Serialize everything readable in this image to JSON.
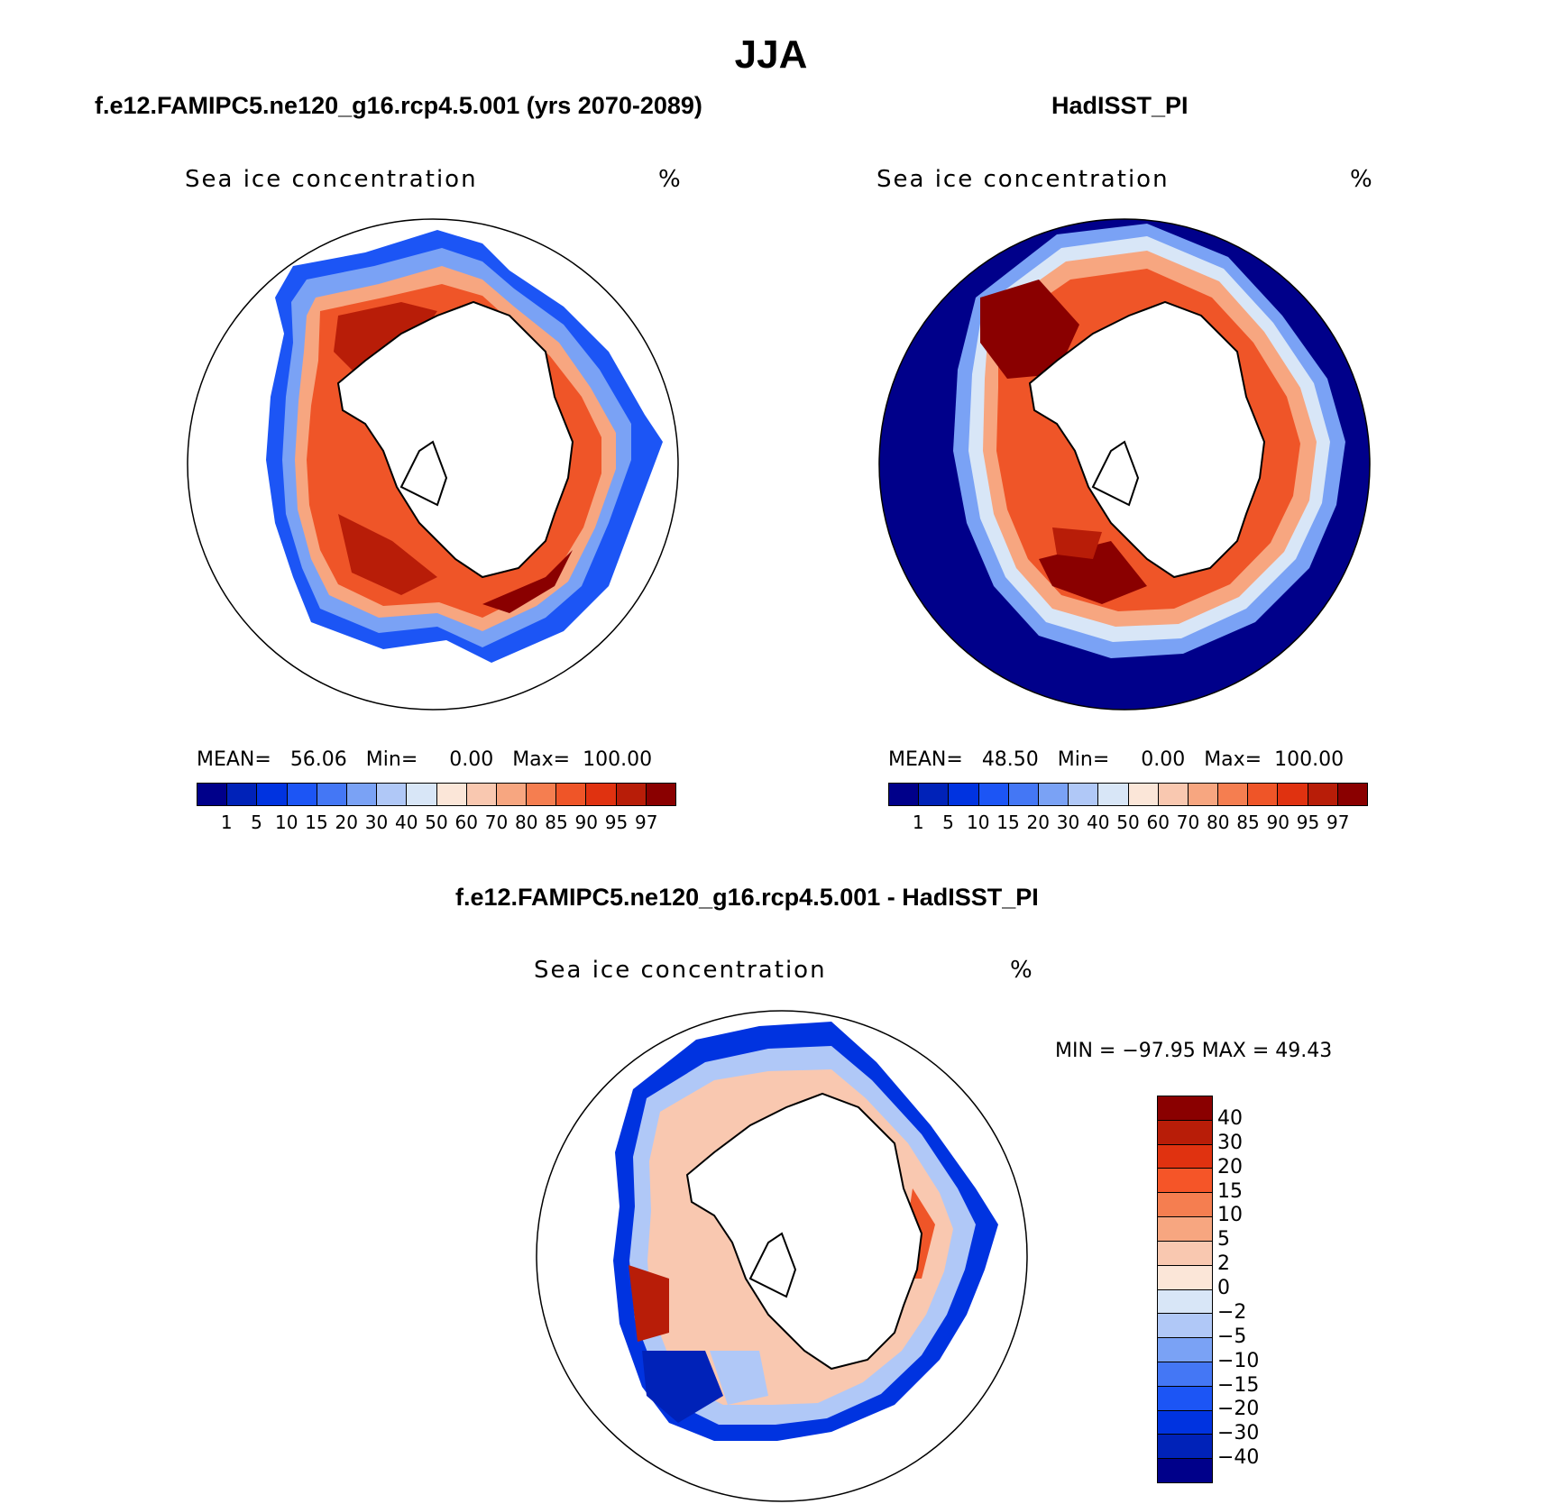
{
  "figure": {
    "title": "JJA"
  },
  "panels": [
    {
      "name": "model",
      "title": "f.e12.FAMIPC5.ne120_g16.rcp4.5.001 (yrs 2070-2089)",
      "field_label": "Sea ice concentration",
      "units": "%",
      "mean_label": "MEAN=",
      "mean": "56.06",
      "min_label": "Min=",
      "min": "0.00",
      "max_label": "Max=",
      "max": "100.00"
    },
    {
      "name": "obs",
      "title": "HadISST_PI",
      "field_label": "Sea ice concentration",
      "units": "%",
      "mean_label": "MEAN=",
      "mean": "48.50",
      "min_label": "Min=",
      "min": "0.00",
      "max_label": "Max=",
      "max": "100.00"
    },
    {
      "name": "diff",
      "title": "f.e12.FAMIPC5.ne120_g16.rcp4.5.001 - HadISST_PI",
      "field_label": "Sea ice concentration",
      "units": "%",
      "minmax_text": "MIN = −97.95 MAX =   49.43"
    }
  ],
  "colorbar_abs": {
    "levels": [
      "1",
      "5",
      "10",
      "15",
      "20",
      "30",
      "40",
      "50",
      "60",
      "70",
      "80",
      "85",
      "90",
      "95",
      "97"
    ],
    "colors": [
      "#00008a",
      "#0022b8",
      "#0033e0",
      "#1c55f5",
      "#4477f5",
      "#7aa2f5",
      "#b0c8f7",
      "#d8e6f7",
      "#fbe6d8",
      "#f9c8b0",
      "#f7a680",
      "#f57e50",
      "#ef5528",
      "#e03210",
      "#b81d08",
      "#8a0000"
    ]
  },
  "colorbar_diff": {
    "levels": [
      "40",
      "30",
      "20",
      "15",
      "10",
      "5",
      "2",
      "0",
      "−2",
      "−5",
      "−10",
      "−15",
      "−20",
      "−30",
      "−40"
    ],
    "colors": [
      "#8a0000",
      "#b81d08",
      "#e03210",
      "#f55528",
      "#f57e50",
      "#f7a680",
      "#f9c8b0",
      "#fbe6d8",
      "#d8e6f7",
      "#b0c8f7",
      "#7aa2f5",
      "#4477f5",
      "#1c55f5",
      "#0033e0",
      "#0022b8",
      "#00008a"
    ]
  }
}
